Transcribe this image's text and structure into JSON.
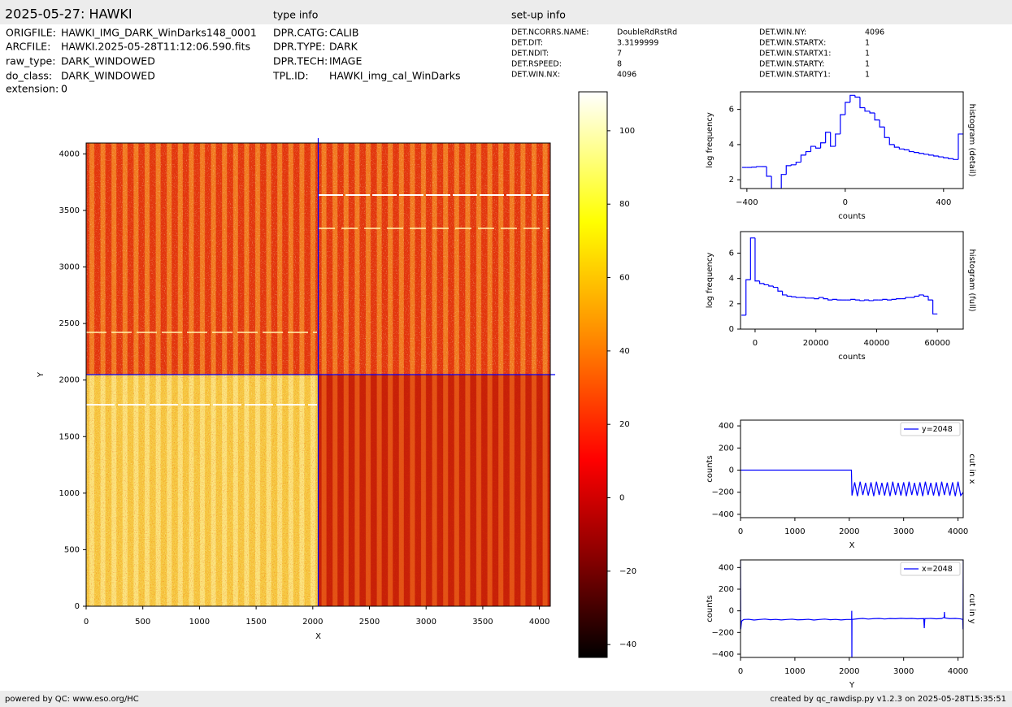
{
  "header": {
    "title": "2025-05-27: HAWKI"
  },
  "file_info": {
    "rows": [
      [
        "ORIGFILE:",
        "HAWKI_IMG_DARK_WinDarks148_0001"
      ],
      [
        "ARCFILE:",
        "HAWKI.2025-05-28T11:12:06.590.fits"
      ],
      [
        "raw_type:",
        "DARK_WINDOWED"
      ],
      [
        "do_class:",
        "DARK_WINDOWED"
      ],
      [
        "extension:",
        "0"
      ]
    ]
  },
  "type_info": {
    "title": "type info",
    "rows": [
      [
        "DPR.CATG:",
        "CALIB"
      ],
      [
        "DPR.TYPE:",
        "DARK"
      ],
      [
        "DPR.TECH:",
        "IMAGE"
      ],
      [
        "TPL.ID:",
        "HAWKI_img_cal_WinDarks"
      ]
    ]
  },
  "setup_info": {
    "title": "set-up info",
    "rows": [
      [
        "DET.NCORRS.NAME:",
        "DoubleRdRstRd"
      ],
      [
        "DET.DIT:",
        "3.3199999"
      ],
      [
        "DET.NDIT:",
        "7"
      ],
      [
        "DET.RSPEED:",
        "8"
      ],
      [
        "DET.WIN.NX:",
        "4096"
      ],
      [
        "DET.WIN.NY:",
        "4096"
      ],
      [
        "DET.WIN.STARTX:",
        "1"
      ],
      [
        "DET.WIN.STARTX1:",
        "1"
      ],
      [
        "DET.WIN.STARTY:",
        "1"
      ],
      [
        "DET.WIN.STARTY1:",
        "1"
      ]
    ]
  },
  "footer": {
    "left": "powered by QC: www.eso.org/HC",
    "right": "created by qc_rawdisp.py v1.2.3 on 2025-05-28T15:35:51"
  },
  "chart_data": [
    {
      "type": "image",
      "xlabel": "X",
      "ylabel": "Y",
      "xlim": [
        0,
        4096
      ],
      "ylim": [
        0,
        4096
      ],
      "xticks": [
        0,
        500,
        1000,
        1500,
        2000,
        2500,
        3000,
        3500,
        4000
      ],
      "yticks": [
        0,
        500,
        1000,
        1500,
        2000,
        2500,
        3000,
        3500,
        4000
      ],
      "cut_x": 2048,
      "cut_y": 2048,
      "cut_color": "#0000ff",
      "clim": [
        -43.5,
        110.6
      ],
      "cticks": [
        {
          "value": -40,
          "label": "−40"
        },
        {
          "value": -20,
          "label": "−20"
        },
        0,
        20,
        40,
        60,
        80,
        100
      ]
    },
    {
      "type": "histogram",
      "xlabel": "counts",
      "ylabel": "log frequency",
      "right_label": "histogram (detail)",
      "color": "#0000ff",
      "xlim": [
        -426,
        480
      ],
      "ylim": [
        1.5,
        7
      ],
      "xticks": [
        {
          "value": -400,
          "label": "−400"
        },
        0,
        400
      ],
      "yticks": [
        2,
        4,
        6
      ],
      "bins": [
        -420,
        -400,
        -380,
        -360,
        -340,
        -320,
        -300,
        -280,
        -260,
        -240,
        -220,
        -200,
        -180,
        -160,
        -140,
        -120,
        -100,
        -80,
        -60,
        -40,
        -20,
        0,
        20,
        40,
        60,
        80,
        100,
        120,
        140,
        160,
        180,
        200,
        220,
        240,
        260,
        280,
        300,
        320,
        340,
        360,
        380,
        400,
        420,
        440,
        460,
        480
      ],
      "values": [
        2.7,
        2.7,
        2.72,
        2.75,
        2.75,
        2.2,
        1.5,
        1.5,
        2.3,
        2.8,
        2.85,
        3.0,
        3.4,
        3.6,
        3.9,
        3.8,
        4.1,
        4.7,
        3.9,
        4.6,
        5.7,
        6.4,
        6.8,
        6.7,
        6.1,
        5.9,
        5.8,
        5.4,
        5.0,
        4.4,
        4.0,
        3.85,
        3.75,
        3.7,
        3.6,
        3.55,
        3.5,
        3.45,
        3.4,
        3.35,
        3.3,
        3.25,
        3.2,
        3.15,
        4.6
      ]
    },
    {
      "type": "histogram",
      "xlabel": "counts",
      "ylabel": "log frequency",
      "right_label": "histogram (full)",
      "color": "#0000ff",
      "xlim": [
        -4800,
        68500
      ],
      "ylim": [
        0,
        7.7
      ],
      "xticks": [
        0,
        20000,
        40000,
        60000
      ],
      "yticks": [
        0,
        2,
        4,
        6
      ],
      "bins": [
        -4500,
        -3000,
        -1500,
        0,
        1500,
        3000,
        4500,
        6000,
        7500,
        9000,
        10500,
        12000,
        13500,
        15000,
        16500,
        18000,
        19500,
        21000,
        22500,
        24000,
        25500,
        27000,
        28500,
        30000,
        31500,
        33000,
        34500,
        36000,
        37500,
        39000,
        40500,
        42000,
        43500,
        45000,
        46500,
        48000,
        49500,
        51000,
        52500,
        54000,
        55500,
        57000,
        58500,
        60000
      ],
      "values": [
        1.1,
        3.9,
        7.2,
        3.8,
        3.6,
        3.5,
        3.4,
        3.3,
        3.0,
        2.7,
        2.6,
        2.55,
        2.5,
        2.5,
        2.45,
        2.45,
        2.4,
        2.5,
        2.4,
        2.3,
        2.35,
        2.3,
        2.3,
        2.3,
        2.35,
        2.3,
        2.25,
        2.3,
        2.25,
        2.3,
        2.3,
        2.35,
        2.3,
        2.35,
        2.4,
        2.4,
        2.5,
        2.5,
        2.6,
        2.7,
        2.6,
        2.3,
        1.2
      ]
    },
    {
      "type": "line",
      "xlabel": "X",
      "ylabel": "counts",
      "right_label": "cut in x",
      "legend": "upper right",
      "xlim": [
        0,
        4096
      ],
      "ylim": [
        -430,
        452
      ],
      "xticks": [
        0,
        1000,
        2000,
        3000,
        4000
      ],
      "yticks": [
        {
          "value": -400,
          "label": "−400"
        },
        {
          "value": -200,
          "label": "−200"
        },
        0,
        200,
        400
      ],
      "series": [
        {
          "name": "y=2048",
          "color": "#0000ff",
          "x": [
            0,
            2040,
            2050,
            2100,
            2150,
            2200,
            2250,
            2300,
            2350,
            2400,
            2450,
            2500,
            2550,
            2600,
            2650,
            2700,
            2750,
            2800,
            2850,
            2900,
            2950,
            3000,
            3050,
            3100,
            3150,
            3200,
            3250,
            3300,
            3350,
            3400,
            3450,
            3500,
            3550,
            3600,
            3650,
            3700,
            3750,
            3800,
            3850,
            3900,
            3950,
            4000,
            4050,
            4096
          ],
          "values": [
            0,
            0,
            -230,
            -110,
            -235,
            -105,
            -225,
            -115,
            -230,
            -110,
            -235,
            -105,
            -225,
            -115,
            -230,
            -110,
            -235,
            -105,
            -225,
            -115,
            -230,
            -110,
            -235,
            -105,
            -225,
            -115,
            -230,
            -110,
            -235,
            -105,
            -225,
            -115,
            -230,
            -110,
            -235,
            -105,
            -225,
            -115,
            -230,
            -110,
            -235,
            -105,
            -230,
            -200
          ]
        }
      ]
    },
    {
      "type": "line",
      "xlabel": "Y",
      "ylabel": "counts",
      "right_label": "cut in y",
      "legend": "upper right",
      "xlim": [
        0,
        4096
      ],
      "ylim": [
        -430,
        470
      ],
      "xticks": [
        0,
        1000,
        2000,
        3000,
        4000
      ],
      "yticks": [
        {
          "value": -400,
          "label": "−400"
        },
        {
          "value": -200,
          "label": "−200"
        },
        0,
        200,
        400
      ],
      "series": [
        {
          "name": "x=2048",
          "color": "#0000ff",
          "x": [
            0,
            4,
            20,
            60,
            150,
            250,
            350,
            450,
            550,
            650,
            750,
            850,
            950,
            1050,
            1150,
            1250,
            1350,
            1450,
            1550,
            1650,
            1750,
            1850,
            1950,
            2044,
            2046,
            2048,
            2050,
            2150,
            2250,
            2350,
            2450,
            2550,
            2650,
            2750,
            2850,
            2950,
            3050,
            3150,
            3250,
            3370,
            3380,
            3390,
            3500,
            3600,
            3700,
            3745,
            3750,
            3755,
            3850,
            3950,
            4050,
            4088,
            4092,
            4096
          ],
          "values": [
            470,
            -170,
            -95,
            -80,
            -78,
            -85,
            -80,
            -76,
            -82,
            -79,
            -84,
            -80,
            -77,
            -83,
            -81,
            -78,
            -85,
            -80,
            -76,
            -82,
            -79,
            -84,
            -80,
            -80,
            0,
            -440,
            -80,
            -74,
            -70,
            -76,
            -72,
            -70,
            -75,
            -71,
            -73,
            -69,
            -72,
            -70,
            -74,
            -72,
            -160,
            -72,
            -70,
            -74,
            -71,
            -60,
            -10,
            -65,
            -72,
            -70,
            -74,
            -80,
            -170,
            470
          ]
        }
      ]
    }
  ]
}
